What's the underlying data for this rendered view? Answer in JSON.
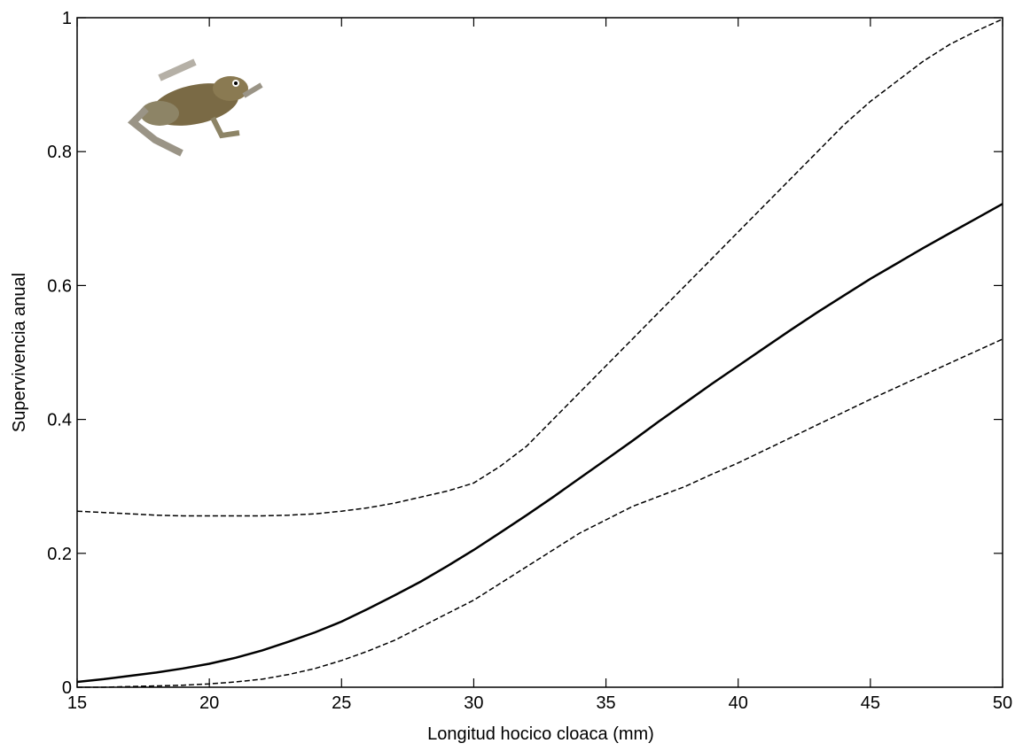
{
  "chart_data": {
    "type": "line",
    "xlabel": "Longitud hocico cloaca (mm)",
    "ylabel": "Supervivencia anual",
    "x": [
      15,
      16,
      17,
      18,
      19,
      20,
      21,
      22,
      23,
      24,
      25,
      26,
      27,
      28,
      29,
      30,
      31,
      32,
      33,
      34,
      35,
      36,
      37,
      38,
      39,
      40,
      41,
      42,
      43,
      44,
      45,
      46,
      47,
      48,
      49,
      50
    ],
    "series": [
      {
        "color": "#000000",
        "style": "solid",
        "values": [
          0.008,
          0.012,
          0.017,
          0.022,
          0.028,
          0.035,
          0.044,
          0.055,
          0.068,
          0.082,
          0.098,
          0.117,
          0.137,
          0.158,
          0.181,
          0.205,
          0.231,
          0.257,
          0.284,
          0.312,
          0.34,
          0.368,
          0.397,
          0.425,
          0.453,
          0.48,
          0.507,
          0.534,
          0.56,
          0.585,
          0.61,
          0.633,
          0.656,
          0.678,
          0.7,
          0.722
        ]
      },
      {
        "color": "#000000",
        "style": "dashed",
        "values": [
          0.263,
          0.261,
          0.259,
          0.257,
          0.256,
          0.256,
          0.256,
          0.256,
          0.257,
          0.259,
          0.263,
          0.268,
          0.275,
          0.284,
          0.293,
          0.305,
          0.33,
          0.36,
          0.4,
          0.44,
          0.48,
          0.52,
          0.56,
          0.6,
          0.64,
          0.68,
          0.72,
          0.76,
          0.8,
          0.84,
          0.875,
          0.905,
          0.935,
          0.96,
          0.98,
          0.998
        ]
      },
      {
        "color": "#000000",
        "style": "dashed",
        "values": [
          0.0,
          0.0,
          0.001,
          0.002,
          0.003,
          0.005,
          0.008,
          0.012,
          0.019,
          0.028,
          0.04,
          0.054,
          0.07,
          0.09,
          0.11,
          0.13,
          0.155,
          0.18,
          0.205,
          0.23,
          0.25,
          0.27,
          0.285,
          0.3,
          0.318,
          0.335,
          0.354,
          0.373,
          0.392,
          0.411,
          0.43,
          0.448,
          0.466,
          0.484,
          0.502,
          0.52
        ]
      }
    ],
    "xlim": [
      15,
      50
    ],
    "xticks": [
      15,
      20,
      25,
      30,
      35,
      40,
      45,
      50
    ],
    "ylim": [
      0,
      1
    ],
    "yticks": [
      0,
      0.2,
      0.4,
      0.6,
      0.8,
      1
    ]
  }
}
